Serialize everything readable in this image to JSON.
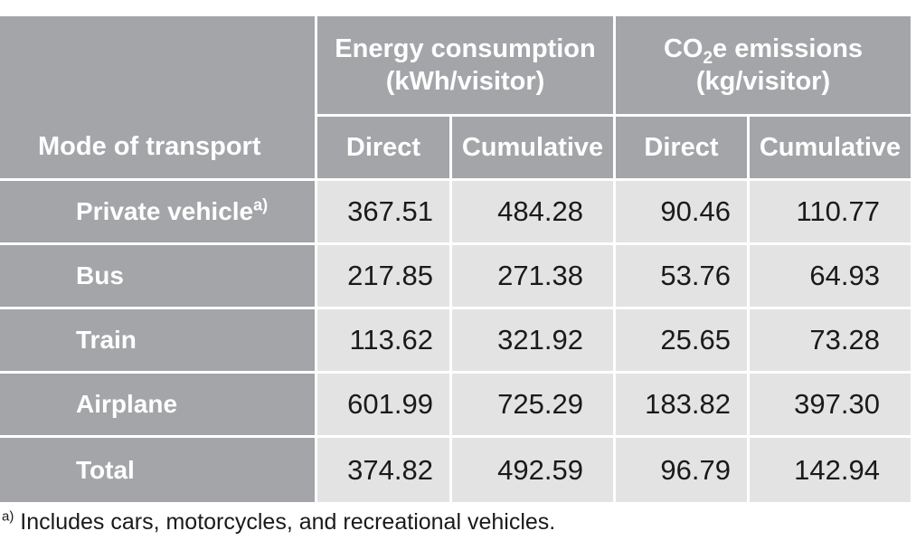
{
  "header": {
    "mode_label": "Mode of transport",
    "energy_line1": "Energy consumption",
    "energy_line2": "(kWh/visitor)",
    "co2_prefix": "CO",
    "co2_subscript": "2",
    "co2_suffix": "e emissions",
    "co2_line2": "(kg/visitor)",
    "sub_direct": "Direct",
    "sub_cumulative": "Cumulative"
  },
  "rows": [
    {
      "mode": "Private vehicle",
      "marker": "a)",
      "energy_direct": "367.51",
      "energy_cumulative": "484.28",
      "co2_direct": "90.46",
      "co2_cumulative": "110.77"
    },
    {
      "mode": "Bus",
      "energy_direct": "217.85",
      "energy_cumulative": "271.38",
      "co2_direct": "53.76",
      "co2_cumulative": "64.93"
    },
    {
      "mode": "Train",
      "energy_direct": "113.62",
      "energy_cumulative": "321.92",
      "co2_direct": "25.65",
      "co2_cumulative": "73.28"
    },
    {
      "mode": "Airplane",
      "energy_direct": "601.99",
      "energy_cumulative": "725.29",
      "co2_direct": "183.82",
      "co2_cumulative": "397.30"
    },
    {
      "mode": "Total",
      "energy_direct": "374.82",
      "energy_cumulative": "492.59",
      "co2_direct": "96.79",
      "co2_cumulative": "142.94"
    }
  ],
  "footnote": {
    "marker": "a)",
    "text": " Includes cars, motorcycles, and recreational vehicles."
  },
  "colors": {
    "header_bg": "#a4a5a8",
    "cell_bg": "#e3e3e4",
    "header_text": "#ffffff",
    "body_text": "#1a1a1a"
  }
}
